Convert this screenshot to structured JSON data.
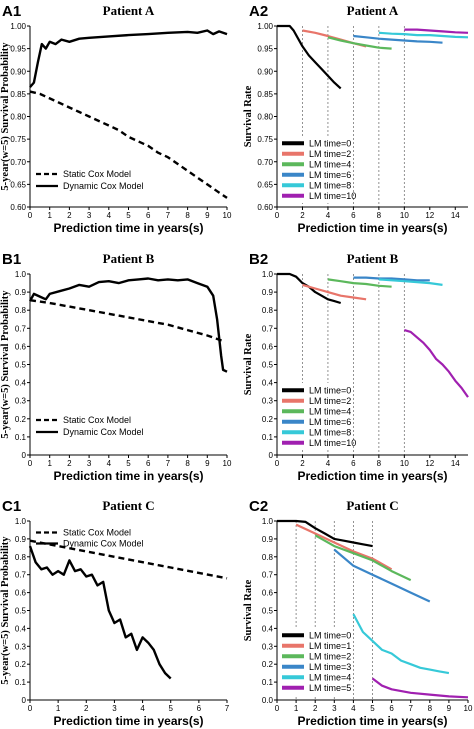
{
  "chart_data": [
    {
      "id": "A1",
      "panel_label": "A1",
      "title": "Patient A",
      "type": "line",
      "xlabel": "Prediction time in years(s)",
      "ylabel": "5-year(w=5) Survival Probability",
      "xlim": [
        0,
        10
      ],
      "ylim": [
        0.6,
        1.0
      ],
      "xticks": [
        0,
        1,
        2,
        3,
        4,
        5,
        6,
        7,
        8,
        9,
        10
      ],
      "yticks": [
        0.6,
        0.65,
        0.7,
        0.75,
        0.8,
        0.85,
        0.9,
        0.95,
        1.0
      ],
      "yticklabels": [
        "0.60",
        "0.65",
        "0.70",
        "0.75",
        "0.80",
        "0.85",
        "0.90",
        "0.95",
        "1.00"
      ],
      "vlines": [],
      "legend": {
        "position": "bottom-left",
        "style": "line"
      },
      "series": [
        {
          "name": "Static Cox Model",
          "dash": "dashed",
          "color": "#000000",
          "x": [
            0,
            0.5,
            1,
            1.5,
            2,
            2.5,
            3,
            3.5,
            4,
            4.5,
            5,
            5.5,
            6,
            6.5,
            7,
            7.5,
            8,
            8.5,
            9,
            9.5,
            10
          ],
          "y": [
            0.855,
            0.85,
            0.84,
            0.83,
            0.82,
            0.81,
            0.8,
            0.79,
            0.78,
            0.77,
            0.755,
            0.745,
            0.735,
            0.72,
            0.71,
            0.695,
            0.68,
            0.665,
            0.65,
            0.635,
            0.62
          ]
        },
        {
          "name": "Dynamic Cox Model",
          "dash": "solid",
          "color": "#000000",
          "x": [
            0,
            0.2,
            0.4,
            0.6,
            0.8,
            1,
            1.3,
            1.6,
            2,
            2.5,
            3,
            4,
            5,
            6,
            7,
            8,
            8.5,
            9,
            9.3,
            9.6,
            10
          ],
          "y": [
            0.865,
            0.875,
            0.92,
            0.96,
            0.95,
            0.965,
            0.96,
            0.97,
            0.965,
            0.972,
            0.974,
            0.977,
            0.98,
            0.982,
            0.985,
            0.987,
            0.985,
            0.99,
            0.982,
            0.988,
            0.982
          ]
        }
      ]
    },
    {
      "id": "A2",
      "panel_label": "A2",
      "title": "Patient A",
      "type": "line",
      "xlabel": "Prediction time in years(s)",
      "ylabel": "Survival Rate",
      "xlim": [
        0,
        15
      ],
      "ylim": [
        0.6,
        1.0
      ],
      "xticks": [
        0,
        2,
        4,
        6,
        8,
        10,
        12,
        14
      ],
      "yticks": [
        0.6,
        0.65,
        0.7,
        0.75,
        0.8,
        0.85,
        0.9,
        0.95,
        1.0
      ],
      "yticklabels": [
        "0.60",
        "0.65",
        "0.70",
        "0.75",
        "0.80",
        "0.85",
        "0.90",
        "0.95",
        "1.00"
      ],
      "vlines": [
        2,
        4,
        6,
        8,
        10
      ],
      "legend": {
        "position": "bottom-left",
        "style": "box"
      },
      "series": [
        {
          "name": "LM time=0",
          "color": "#000000",
          "x": [
            0,
            1,
            1.3,
            1.6,
            2,
            2.5,
            3,
            3.5,
            4,
            4.5,
            5
          ],
          "y": [
            1.0,
            1.0,
            0.99,
            0.975,
            0.955,
            0.935,
            0.92,
            0.905,
            0.89,
            0.875,
            0.862
          ]
        },
        {
          "name": "LM time=2",
          "color": "#e8756a",
          "x": [
            2,
            3,
            4,
            5,
            6,
            7
          ],
          "y": [
            0.99,
            0.985,
            0.978,
            0.97,
            0.962,
            0.955
          ]
        },
        {
          "name": "LM time=4",
          "color": "#5cb85c",
          "x": [
            4,
            5,
            6,
            7,
            8,
            9
          ],
          "y": [
            0.975,
            0.968,
            0.962,
            0.957,
            0.952,
            0.95
          ]
        },
        {
          "name": "LM time=6",
          "color": "#3a86c8",
          "x": [
            6,
            7,
            8,
            9,
            10,
            11,
            12,
            13
          ],
          "y": [
            0.978,
            0.975,
            0.972,
            0.97,
            0.968,
            0.966,
            0.965,
            0.963
          ]
        },
        {
          "name": "LM time=8",
          "color": "#36c9d8",
          "x": [
            8,
            9,
            10,
            11,
            12,
            13,
            14,
            15
          ],
          "y": [
            0.985,
            0.983,
            0.982,
            0.98,
            0.98,
            0.978,
            0.976,
            0.975
          ]
        },
        {
          "name": "LM time=10",
          "color": "#a020b0",
          "x": [
            10,
            11,
            12,
            13,
            14,
            15
          ],
          "y": [
            0.992,
            0.992,
            0.99,
            0.988,
            0.986,
            0.985
          ]
        }
      ]
    },
    {
      "id": "B1",
      "panel_label": "B1",
      "title": "Patient B",
      "type": "line",
      "xlabel": "Prediction time in years(s)",
      "ylabel": "5-year(w=5) Survival Probability",
      "xlim": [
        0,
        10
      ],
      "ylim": [
        0,
        1.0
      ],
      "xticks": [
        0,
        1,
        2,
        3,
        4,
        5,
        6,
        7,
        8,
        9,
        10
      ],
      "yticks": [
        0,
        0.1,
        0.2,
        0.3,
        0.4,
        0.5,
        0.6,
        0.7,
        0.8,
        0.9,
        1.0
      ],
      "yticklabels": [
        "0",
        "0.1",
        "0.2",
        "0.3",
        "0.4",
        "0.5",
        "0.6",
        "0.7",
        "0.8",
        "0.9",
        "1.0"
      ],
      "vlines": [],
      "legend": {
        "position": "bottom-left",
        "style": "line"
      },
      "series": [
        {
          "name": "Static Cox Model",
          "dash": "dashed",
          "color": "#000000",
          "x": [
            0,
            1,
            2,
            3,
            4,
            5,
            6,
            7,
            8,
            9,
            9.8
          ],
          "y": [
            0.855,
            0.84,
            0.82,
            0.8,
            0.78,
            0.76,
            0.74,
            0.72,
            0.69,
            0.66,
            0.63
          ]
        },
        {
          "name": "Dynamic Cox Model",
          "dash": "solid",
          "color": "#000000",
          "x": [
            0,
            0.2,
            0.5,
            0.8,
            1,
            1.5,
            2,
            2.5,
            3,
            3.5,
            4,
            4.5,
            5,
            5.5,
            6,
            6.5,
            7,
            7.5,
            8,
            8.5,
            9,
            9.3,
            9.5,
            9.7,
            9.8,
            10
          ],
          "y": [
            0.85,
            0.89,
            0.875,
            0.86,
            0.89,
            0.905,
            0.92,
            0.94,
            0.93,
            0.955,
            0.96,
            0.95,
            0.965,
            0.97,
            0.975,
            0.965,
            0.97,
            0.965,
            0.97,
            0.95,
            0.93,
            0.88,
            0.75,
            0.55,
            0.47,
            0.46
          ]
        }
      ]
    },
    {
      "id": "B2",
      "panel_label": "B2",
      "title": "Patient B",
      "type": "line",
      "xlabel": "Prediction time in years(s)",
      "ylabel": "Survival Rate",
      "xlim": [
        0,
        15
      ],
      "ylim": [
        0,
        1.0
      ],
      "xticks": [
        0,
        2,
        4,
        6,
        8,
        10,
        12,
        14
      ],
      "yticks": [
        0,
        0.1,
        0.2,
        0.3,
        0.4,
        0.5,
        0.6,
        0.7,
        0.8,
        0.9,
        1.0
      ],
      "yticklabels": [
        "0",
        "0.1",
        "0.2",
        "0.3",
        "0.4",
        "0.5",
        "0.6",
        "0.7",
        "0.8",
        "0.9",
        "1.0"
      ],
      "vlines": [
        2,
        4,
        6,
        8,
        10
      ],
      "legend": {
        "position": "bottom-left",
        "style": "box"
      },
      "series": [
        {
          "name": "LM time=0",
          "color": "#000000",
          "x": [
            0,
            1,
            1.5,
            2,
            2.5,
            3,
            3.5,
            4,
            4.5,
            5
          ],
          "y": [
            1.0,
            1.0,
            0.985,
            0.95,
            0.93,
            0.9,
            0.88,
            0.86,
            0.85,
            0.84
          ]
        },
        {
          "name": "LM time=2",
          "color": "#e8756a",
          "x": [
            2,
            3,
            4,
            5,
            6,
            7
          ],
          "y": [
            0.94,
            0.92,
            0.9,
            0.88,
            0.87,
            0.86
          ]
        },
        {
          "name": "LM time=4",
          "color": "#5cb85c",
          "x": [
            4,
            5,
            6,
            7,
            8,
            9
          ],
          "y": [
            0.97,
            0.96,
            0.95,
            0.945,
            0.935,
            0.93
          ]
        },
        {
          "name": "LM time=6",
          "color": "#3a86c8",
          "x": [
            6,
            7,
            8,
            9,
            10,
            11,
            12
          ],
          "y": [
            0.98,
            0.98,
            0.975,
            0.975,
            0.97,
            0.965,
            0.965
          ]
        },
        {
          "name": "LM time=8",
          "color": "#36c9d8",
          "x": [
            8,
            9,
            10,
            11,
            12,
            13
          ],
          "y": [
            0.97,
            0.965,
            0.96,
            0.955,
            0.95,
            0.94
          ]
        },
        {
          "name": "LM time=10",
          "color": "#a020b0",
          "x": [
            10,
            10.5,
            11,
            11.5,
            12,
            12.5,
            13,
            13.5,
            14,
            14.5,
            15
          ],
          "y": [
            0.69,
            0.68,
            0.65,
            0.62,
            0.58,
            0.53,
            0.5,
            0.46,
            0.41,
            0.37,
            0.32
          ]
        }
      ]
    },
    {
      "id": "C1",
      "panel_label": "C1",
      "title": "Patient C",
      "type": "line",
      "xlabel": "Prediction time in years(s)",
      "ylabel": "5-year(w=5) Survival Probability",
      "xlim": [
        0,
        7
      ],
      "ylim": [
        0,
        1.0
      ],
      "xticks": [
        0,
        1,
        2,
        3,
        4,
        5,
        6,
        7
      ],
      "yticks": [
        0,
        0.1,
        0.2,
        0.3,
        0.4,
        0.5,
        0.6,
        0.7,
        0.8,
        0.9,
        1.0
      ],
      "yticklabels": [
        "0",
        "0.1",
        "0.2",
        "0.3",
        "0.4",
        "0.5",
        "0.6",
        "0.7",
        "0.8",
        "0.9",
        "1.0"
      ],
      "vlines": [],
      "legend": {
        "position": "top-left",
        "style": "line"
      },
      "series": [
        {
          "name": "Static Cox Model",
          "dash": "dashed",
          "color": "#000000",
          "x": [
            0,
            1,
            2,
            3,
            4,
            5,
            6,
            7
          ],
          "y": [
            0.89,
            0.86,
            0.83,
            0.8,
            0.77,
            0.74,
            0.71,
            0.68
          ]
        },
        {
          "name": "Dynamic Cox Model",
          "dash": "solid",
          "color": "#000000",
          "x": [
            0,
            0.2,
            0.4,
            0.6,
            0.8,
            1,
            1.2,
            1.4,
            1.6,
            1.8,
            2,
            2.2,
            2.4,
            2.6,
            2.8,
            3,
            3.2,
            3.4,
            3.6,
            3.8,
            4,
            4.2,
            4.4,
            4.6,
            4.8,
            5
          ],
          "y": [
            0.86,
            0.77,
            0.73,
            0.74,
            0.7,
            0.72,
            0.7,
            0.78,
            0.72,
            0.73,
            0.69,
            0.7,
            0.64,
            0.66,
            0.5,
            0.43,
            0.45,
            0.35,
            0.37,
            0.28,
            0.35,
            0.32,
            0.28,
            0.2,
            0.15,
            0.12
          ]
        }
      ]
    },
    {
      "id": "C2",
      "panel_label": "C2",
      "title": "Patient C",
      "type": "line",
      "xlabel": "Prediction time in years(s)",
      "ylabel": "Survival Rate",
      "xlim": [
        0,
        10
      ],
      "ylim": [
        0,
        1.0
      ],
      "xticks": [
        0,
        1,
        2,
        3,
        4,
        5,
        6,
        7,
        8,
        9,
        10
      ],
      "yticks": [
        0,
        0.1,
        0.2,
        0.3,
        0.4,
        0.5,
        0.6,
        0.7,
        0.8,
        0.9,
        1.0
      ],
      "yticklabels": [
        "0.0",
        "0.1",
        "0.2",
        "0.3",
        "0.4",
        "0.5",
        "0.6",
        "0.7",
        "0.8",
        "0.9",
        "1.0"
      ],
      "vlines": [
        1,
        2,
        3,
        4,
        5
      ],
      "legend": {
        "position": "bottom-left",
        "style": "box"
      },
      "series": [
        {
          "name": "LM time=0",
          "color": "#000000",
          "x": [
            0,
            1,
            1.5,
            2,
            2.5,
            3,
            3.5,
            4,
            4.5,
            5
          ],
          "y": [
            1.0,
            1.0,
            0.995,
            0.96,
            0.93,
            0.9,
            0.89,
            0.88,
            0.87,
            0.86
          ]
        },
        {
          "name": "LM time=1",
          "color": "#e8756a",
          "x": [
            1,
            2,
            3,
            4,
            5,
            6
          ],
          "y": [
            0.98,
            0.93,
            0.88,
            0.83,
            0.79,
            0.73
          ]
        },
        {
          "name": "LM time=2",
          "color": "#5cb85c",
          "x": [
            2,
            3,
            4,
            5,
            6,
            7
          ],
          "y": [
            0.92,
            0.86,
            0.82,
            0.78,
            0.72,
            0.67
          ]
        },
        {
          "name": "LM time=3",
          "color": "#3a86c8",
          "x": [
            3,
            4,
            5,
            6,
            7,
            8
          ],
          "y": [
            0.84,
            0.75,
            0.7,
            0.65,
            0.6,
            0.55
          ]
        },
        {
          "name": "LM time=4",
          "color": "#36c9d8",
          "x": [
            4,
            4.5,
            5,
            5.5,
            6,
            6.5,
            7,
            7.5,
            8,
            8.5,
            9
          ],
          "y": [
            0.48,
            0.38,
            0.33,
            0.28,
            0.26,
            0.22,
            0.2,
            0.18,
            0.17,
            0.16,
            0.15
          ]
        },
        {
          "name": "LM time=5",
          "color": "#a020b0",
          "x": [
            5,
            5.5,
            6,
            7,
            8,
            9,
            10
          ],
          "y": [
            0.12,
            0.08,
            0.06,
            0.04,
            0.03,
            0.02,
            0.015
          ]
        }
      ]
    }
  ]
}
